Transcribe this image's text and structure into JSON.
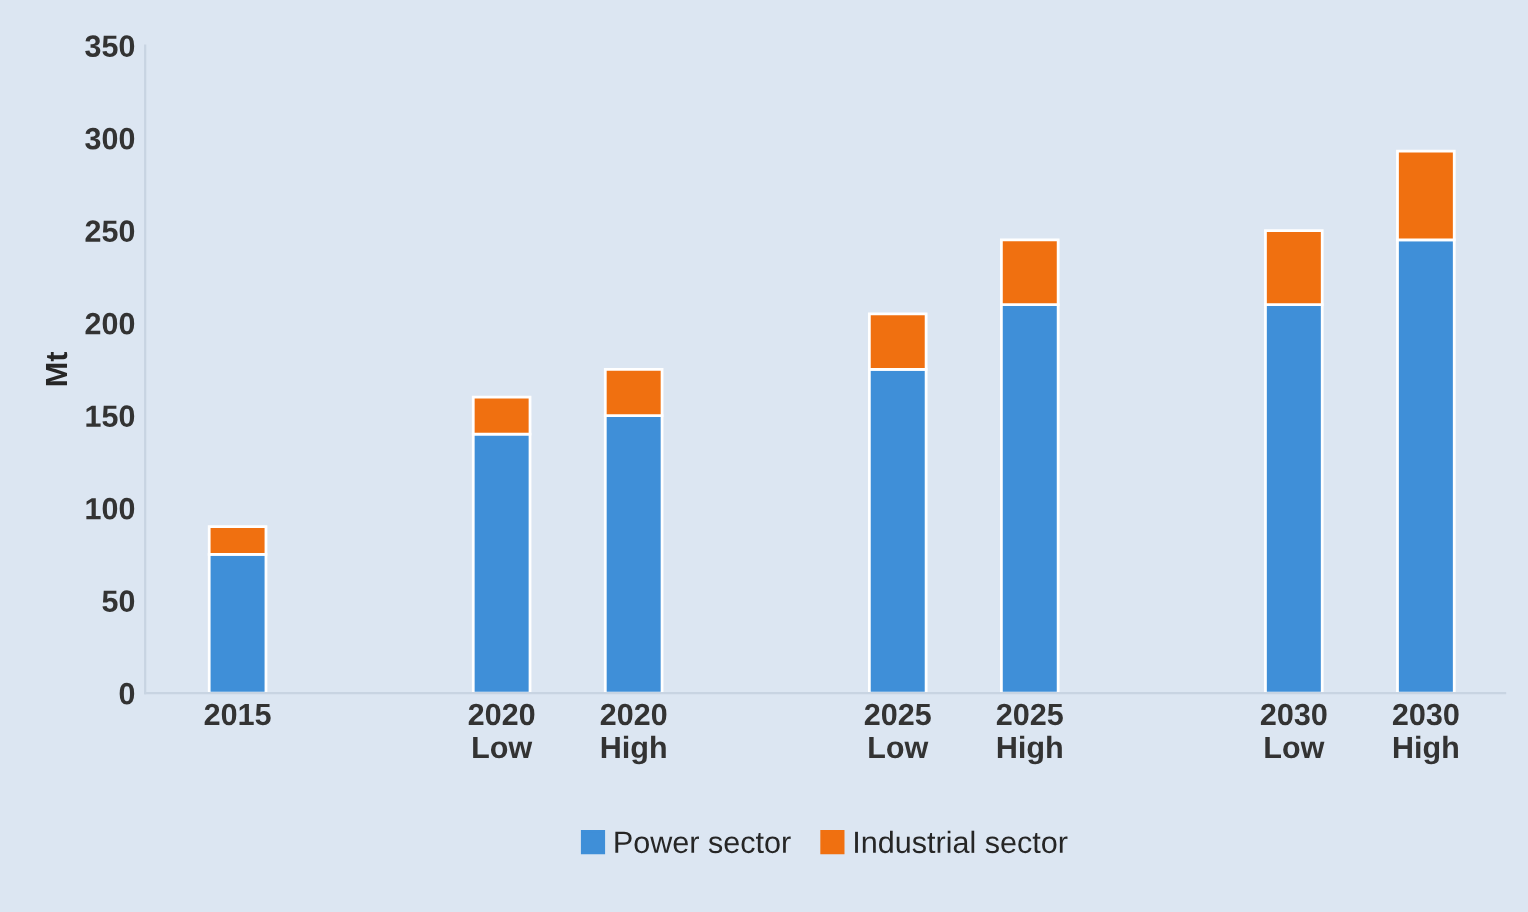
{
  "chart_data": {
    "type": "bar",
    "stacked": true,
    "ylabel": "Mt",
    "categories": [
      "2015",
      null,
      "2020\nLow",
      "2020\nHigh",
      null,
      "2025\nLow",
      "2025\nHigh",
      null,
      "2030\nLow",
      "2030\nHigh"
    ],
    "series": [
      {
        "name": "Power sector",
        "color": "#3f8fd8",
        "values": [
          75,
          null,
          140,
          150,
          null,
          175,
          210,
          null,
          210,
          245
        ]
      },
      {
        "name": "Industrial sector",
        "color": "#f07010",
        "values": [
          15,
          null,
          20,
          25,
          null,
          30,
          35,
          null,
          40,
          48
        ]
      }
    ],
    "ylim": [
      0,
      350
    ],
    "yticks": [
      0,
      50,
      100,
      150,
      200,
      250,
      300,
      350
    ],
    "grid": false,
    "legend": "bottom"
  }
}
